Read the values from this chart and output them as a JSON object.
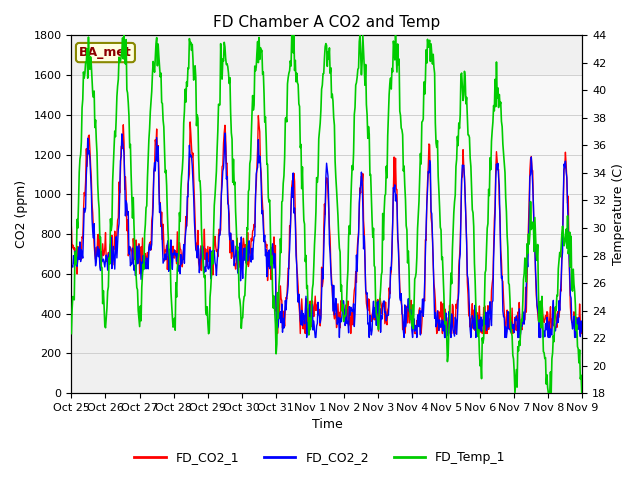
{
  "title": "FD Chamber A CO2 and Temp",
  "xlabel": "Time",
  "ylabel_left": "CO2 (ppm)",
  "ylabel_right": "Temperature (C)",
  "legend_label": "BA_met",
  "series": [
    "FD_CO2_1",
    "FD_CO2_2",
    "FD_Temp_1"
  ],
  "colors": [
    "red",
    "blue",
    "#00cc00"
  ],
  "ylim_left": [
    0,
    1800
  ],
  "ylim_right": [
    18,
    44
  ],
  "yticks_left": [
    0,
    200,
    400,
    600,
    800,
    1000,
    1200,
    1400,
    1600,
    1800
  ],
  "yticks_right": [
    18,
    20,
    22,
    24,
    26,
    28,
    30,
    32,
    34,
    36,
    38,
    40,
    42,
    44
  ],
  "xtick_labels": [
    "Oct 25",
    "Oct 26",
    "Oct 27",
    "Oct 28",
    "Oct 29",
    "Oct 30",
    "Oct 31",
    "Nov 1",
    "Nov 2",
    "Nov 3",
    "Nov 4",
    "Nov 5",
    "Nov 6",
    "Nov 7",
    "Nov 8",
    "Nov 9"
  ],
  "shaded_band_co2": [
    400,
    1600
  ],
  "shaded_band_alpha": 0.25,
  "background_color": "#ffffff",
  "plot_bg_color": "#f0f0f0",
  "grid_color": "#d0d0d0",
  "n_days": 15,
  "n_per_day": 48,
  "linewidth_co2": 1.0,
  "linewidth_temp": 1.2,
  "title_fontsize": 11,
  "axis_fontsize": 9,
  "tick_fontsize": 8,
  "legend_fontsize": 9
}
